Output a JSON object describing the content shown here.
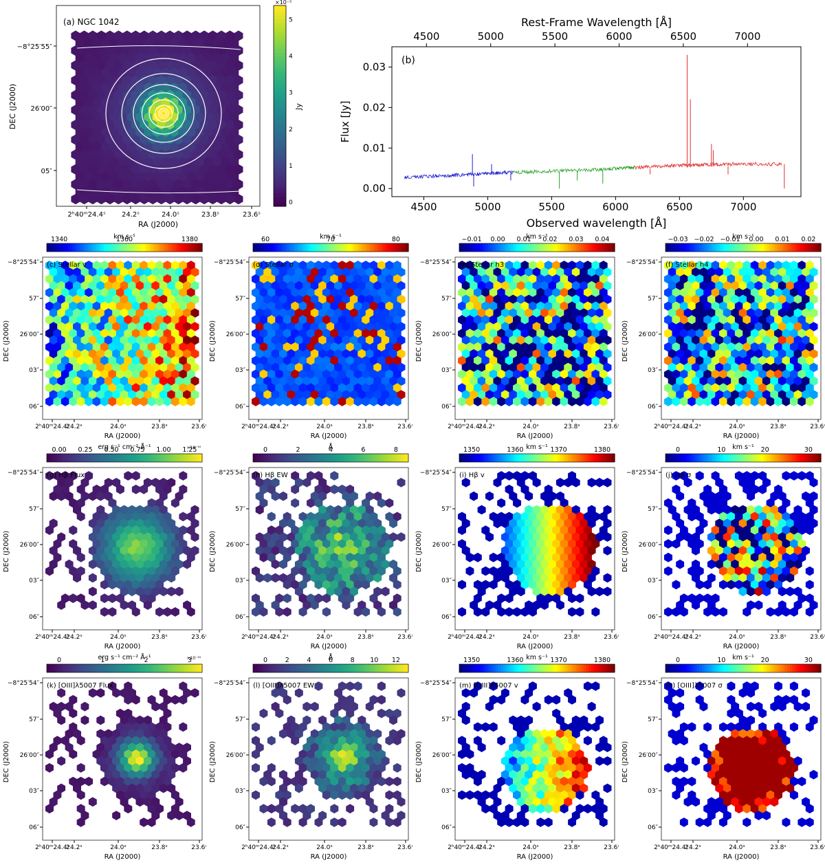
{
  "figure": {
    "image_panel": {
      "label": "(a) NGC 1042",
      "colorbar_label": "Jy",
      "colorbar_exponent": "×10⁻⁵",
      "colorbar_ticks": [
        "0",
        "1",
        "2",
        "3",
        "4",
        "5"
      ],
      "y_ticks": [
        "−8°25′55″",
        "26′00″",
        "05″"
      ],
      "x_ticks": [
        "2ʰ40ᵐ24.4ˢ",
        "24.2ˢ",
        "24.0ˢ",
        "23.8ˢ",
        "23.6ˢ"
      ],
      "xlabel": "RA (J2000)",
      "ylabel": "DEC (J2000)"
    },
    "map_axes": {
      "y_ticks": [
        "−8°25′54″",
        "57″",
        "26′00″",
        "03″",
        "06″"
      ],
      "x_ticks": [
        "2ʰ40ᵐ24.4ˢ",
        "24.2ˢ",
        "24.0ˢ",
        "23.8ˢ",
        "23.6ˢ"
      ],
      "xlabel": "RA (J2000)",
      "ylabel": "DEC (J2000)"
    },
    "maps": [
      {
        "label": "(c) Stellar v",
        "unit": "km s⁻¹",
        "cmap": "jet",
        "pattern": "stellar_v",
        "ticks": [
          "1340",
          "1360",
          "1380"
        ],
        "exp": ""
      },
      {
        "label": "(d) Stellar σ",
        "unit": "km s⁻¹",
        "cmap": "jet",
        "pattern": "stellar_sigma",
        "ticks": [
          "60",
          "70",
          "80"
        ],
        "exp": ""
      },
      {
        "label": "(e) Stellar h3",
        "unit": "km s⁻¹",
        "cmap": "jet",
        "pattern": "noise",
        "ticks": [
          "−0.01",
          "0.00",
          "0.01",
          "0.02",
          "0.03",
          "0.04"
        ],
        "exp": ""
      },
      {
        "label": "(f) Stellar h4",
        "unit": "km s⁻¹",
        "cmap": "jet",
        "pattern": "noise",
        "ticks": [
          "−0.03",
          "−0.02",
          "−0.01",
          "0.00",
          "0.01",
          "0.02"
        ],
        "exp": ""
      },
      {
        "label": "(g) Hβ Flux",
        "unit": "erg s⁻¹ cm⁻² Å⁻¹",
        "cmap": "viridis",
        "pattern": "flux",
        "ticks": [
          "0.00",
          "0.25",
          "0.50",
          "0.75",
          "1.00",
          "1.25"
        ],
        "exp": "×10⁻¹⁶"
      },
      {
        "label": "(h) Hβ EW",
        "unit": "Å",
        "cmap": "viridis",
        "pattern": "ew",
        "ticks": [
          "0",
          "2",
          "4",
          "6",
          "8"
        ],
        "exp": ""
      },
      {
        "label": "(i) Hβ v",
        "unit": "km s⁻¹",
        "cmap": "jet",
        "pattern": "gas_v",
        "ticks": [
          "1350",
          "1360",
          "1370",
          "1380"
        ],
        "exp": ""
      },
      {
        "label": "(j) Hβ σ",
        "unit": "km s⁻¹",
        "cmap": "jet",
        "pattern": "gas_sigma",
        "ticks": [
          "0",
          "10",
          "20",
          "30"
        ],
        "exp": ""
      },
      {
        "label": "(k) [OIII]λ5007 Flux",
        "unit": "erg s⁻¹ cm⁻² Å⁻¹",
        "cmap": "viridis",
        "pattern": "oiii_flux",
        "ticks": [
          "0",
          "1",
          "2",
          "3"
        ],
        "exp": "×10⁻¹⁶"
      },
      {
        "label": "(l) [OIII]λ5007 EW",
        "unit": "Å",
        "cmap": "viridis",
        "pattern": "oiii_ew",
        "ticks": [
          "0",
          "2",
          "4",
          "6",
          "8",
          "10",
          "12"
        ],
        "exp": ""
      },
      {
        "label": "(m) [OIII]λ5007 v",
        "unit": "km s⁻¹",
        "cmap": "jet",
        "pattern": "gas_v2",
        "ticks": [
          "1350",
          "1360",
          "1370",
          "1380"
        ],
        "exp": ""
      },
      {
        "label": "(n) [OIII]λ5007 σ",
        "unit": "km s⁻¹",
        "cmap": "jet",
        "pattern": "oiii_sigma",
        "ticks": [
          "0",
          "10",
          "20",
          "30"
        ],
        "exp": ""
      }
    ]
  },
  "chart_data": {
    "type": "line",
    "title": "(b)",
    "xlabel": "Observed wavelength [Å]",
    "ylabel": "Flux [Jy]",
    "top_xlabel": "Rest-Frame Wavelength [Å]",
    "xlim": [
      4250,
      7450
    ],
    "ylim": [
      -0.002,
      0.035
    ],
    "x_ticks": [
      4500,
      5000,
      5500,
      6000,
      6500,
      7000
    ],
    "y_ticks": [
      0.0,
      0.01,
      0.02,
      0.03
    ],
    "y_tick_labels": [
      "0.00",
      "0.01",
      "0.02",
      "0.03"
    ],
    "top_ticks": [
      4500,
      5000,
      5500,
      6000,
      6500,
      7000
    ],
    "redshift_factor": 1.0046,
    "series": [
      {
        "name": "blue segment",
        "color": "#1f1fd0",
        "x": [
          4350,
          4600,
          4800,
          5000,
          5200
        ],
        "y": [
          0.0028,
          0.0031,
          0.0034,
          0.0037,
          0.004
        ]
      },
      {
        "name": "green segment",
        "color": "#2ca02c",
        "x": [
          5200,
          5500,
          5800,
          6000,
          6150
        ],
        "y": [
          0.004,
          0.0043,
          0.0046,
          0.0049,
          0.0052
        ]
      },
      {
        "name": "red segment",
        "color": "#e03030",
        "x": [
          6150,
          6400,
          6600,
          6800,
          7000,
          7300
        ],
        "y": [
          0.0052,
          0.0056,
          0.0058,
          0.006,
          0.0061,
          0.006
        ]
      }
    ],
    "emission_lines": [
      {
        "x": 4880,
        "y": 0.0085
      },
      {
        "x": 5030,
        "y": 0.006
      },
      {
        "x": 6560,
        "y": 0.033
      },
      {
        "x": 6585,
        "y": 0.022
      },
      {
        "x": 6750,
        "y": 0.011
      },
      {
        "x": 6765,
        "y": 0.0095
      }
    ],
    "absorption_lines": [
      {
        "x": 4890,
        "y": 0.0005
      },
      {
        "x": 5180,
        "y": 0.002
      },
      {
        "x": 5560,
        "y": 0.0
      },
      {
        "x": 5700,
        "y": 0.002
      },
      {
        "x": 5900,
        "y": 0.0012
      },
      {
        "x": 6270,
        "y": 0.0035
      },
      {
        "x": 6880,
        "y": 0.0035
      },
      {
        "x": 7320,
        "y": 0.0
      }
    ]
  }
}
